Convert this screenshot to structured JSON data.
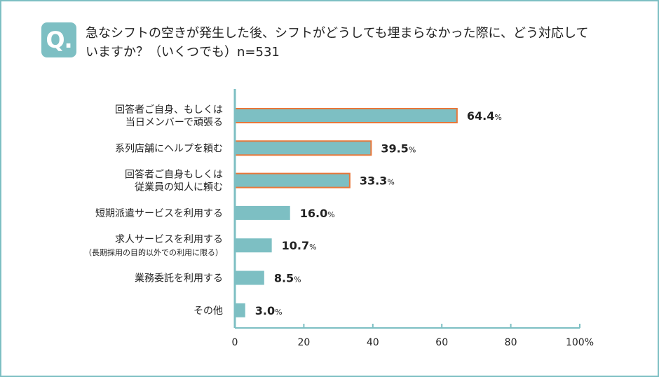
{
  "question": {
    "badge": "Q.",
    "text_line1": "急なシフトの空きが発生した後、シフトがどうしても埋まらなかった際に、どう対応して",
    "text_line2": "いますか？（いくつでも）n=531"
  },
  "colors": {
    "frame": "#7dbfc3",
    "bar_fill": "#7dbfc3",
    "highlight_border": "#e8773a",
    "axis": "#7dbfc3"
  },
  "chart_data": {
    "type": "bar",
    "orientation": "horizontal",
    "title": "",
    "xlabel": "",
    "ylabel": "",
    "xlim": [
      0,
      100
    ],
    "ticks": [
      0,
      20,
      40,
      60,
      80,
      100
    ],
    "tick_labels": [
      "0",
      "20",
      "40",
      "60",
      "80",
      "100%"
    ],
    "grid": false,
    "categories": [
      {
        "lines": [
          "回答者ご自身、もしくは",
          "当日メンバーで頑張る"
        ],
        "sub": "",
        "value": 64.4,
        "value_label": "64.4",
        "highlight": true
      },
      {
        "lines": [
          "系列店舗にヘルプを頼む"
        ],
        "sub": "",
        "value": 39.5,
        "value_label": "39.5",
        "highlight": true
      },
      {
        "lines": [
          "回答者ご自身もしくは",
          "従業員の知人に頼む"
        ],
        "sub": "",
        "value": 33.3,
        "value_label": "33.3",
        "highlight": true
      },
      {
        "lines": [
          "短期派遣サービスを利用する"
        ],
        "sub": "",
        "value": 16.0,
        "value_label": "16.0",
        "highlight": false
      },
      {
        "lines": [
          "求人サービスを利用する"
        ],
        "sub": "（長期採用の目的以外での利用に限る）",
        "value": 10.7,
        "value_label": "10.7",
        "highlight": false
      },
      {
        "lines": [
          "業務委託を利用する"
        ],
        "sub": "",
        "value": 8.5,
        "value_label": "8.5",
        "highlight": false
      },
      {
        "lines": [
          "その他"
        ],
        "sub": "",
        "value": 3.0,
        "value_label": "3.0",
        "highlight": false
      }
    ],
    "value_suffix": "%"
  }
}
